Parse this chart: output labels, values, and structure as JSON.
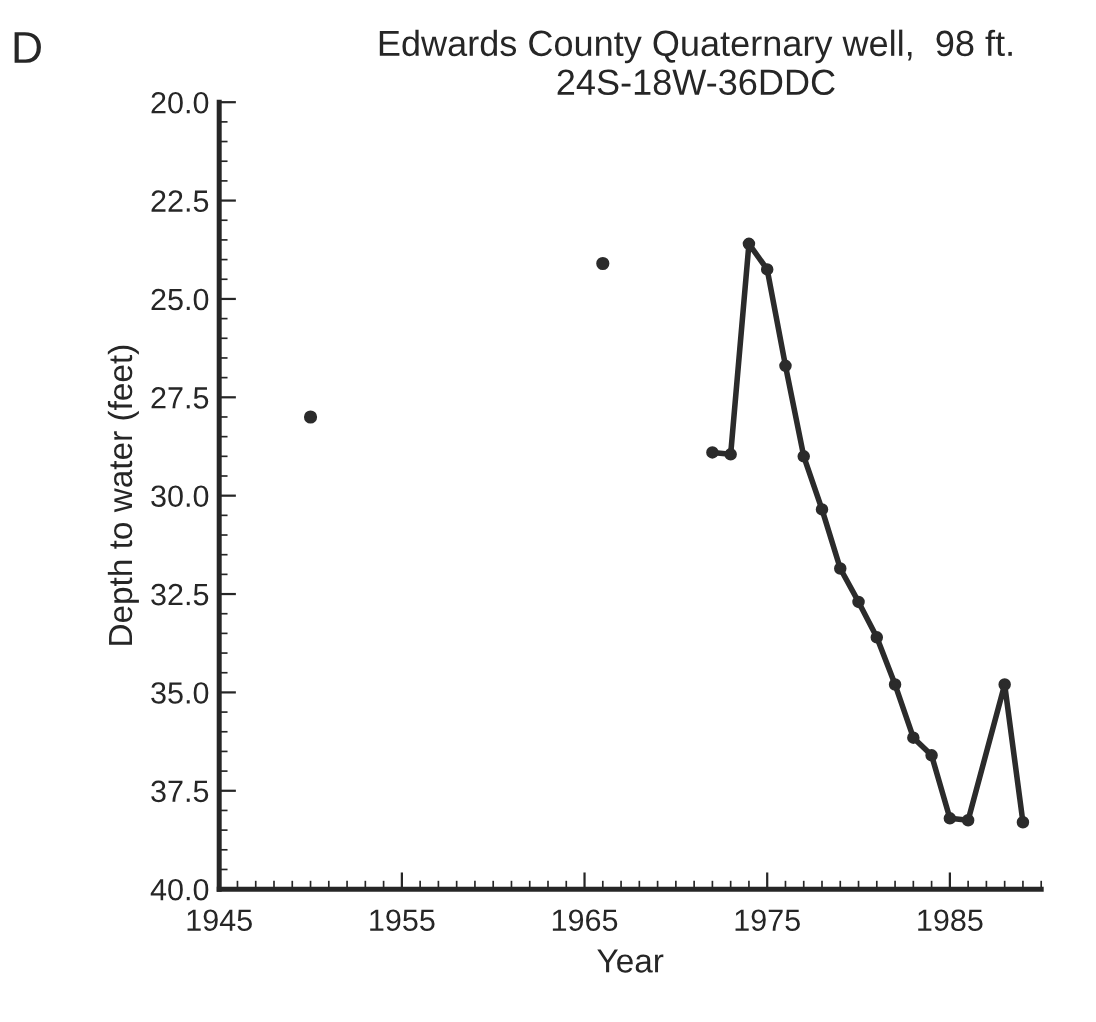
{
  "chart_data": {
    "type": "line",
    "title": "Edwards County Quaternary well,  98 ft.\n24S-18W-36DDC",
    "xlabel": "Year",
    "ylabel": "Depth to water (feet)",
    "annotations": [
      "D"
    ],
    "series": [
      {
        "type": "scatter",
        "color": "#2b2b2b",
        "x": [
          1950,
          1966
        ],
        "values": [
          28.0,
          24.1
        ]
      },
      {
        "color": "#2b2b2b",
        "x": [
          1972,
          1973,
          1974,
          1975,
          1976,
          1977,
          1978,
          1979,
          1980,
          1981,
          1982,
          1983,
          1984,
          1985,
          1986,
          1988,
          1989
        ],
        "values": [
          28.9,
          28.95,
          23.6,
          24.25,
          26.7,
          29.0,
          30.35,
          31.85,
          32.7,
          33.6,
          34.8,
          36.15,
          36.6,
          38.2,
          38.25,
          34.8,
          38.3
        ]
      }
    ],
    "xlim": [
      1945,
      1990
    ],
    "xticks": [
      1945,
      1955,
      1965,
      1975,
      1985
    ],
    "ylim": [
      40,
      20
    ],
    "yticks": [
      {
        "value": 20,
        "label": "20.0"
      },
      22.5,
      {
        "value": 25,
        "label": "25.0"
      },
      27.5,
      {
        "value": 30,
        "label": "30.0"
      },
      32.5,
      {
        "value": 35,
        "label": "35.0"
      },
      37.5,
      {
        "value": 40,
        "label": "40.0"
      }
    ],
    "marker": "circle",
    "grid": false
  }
}
